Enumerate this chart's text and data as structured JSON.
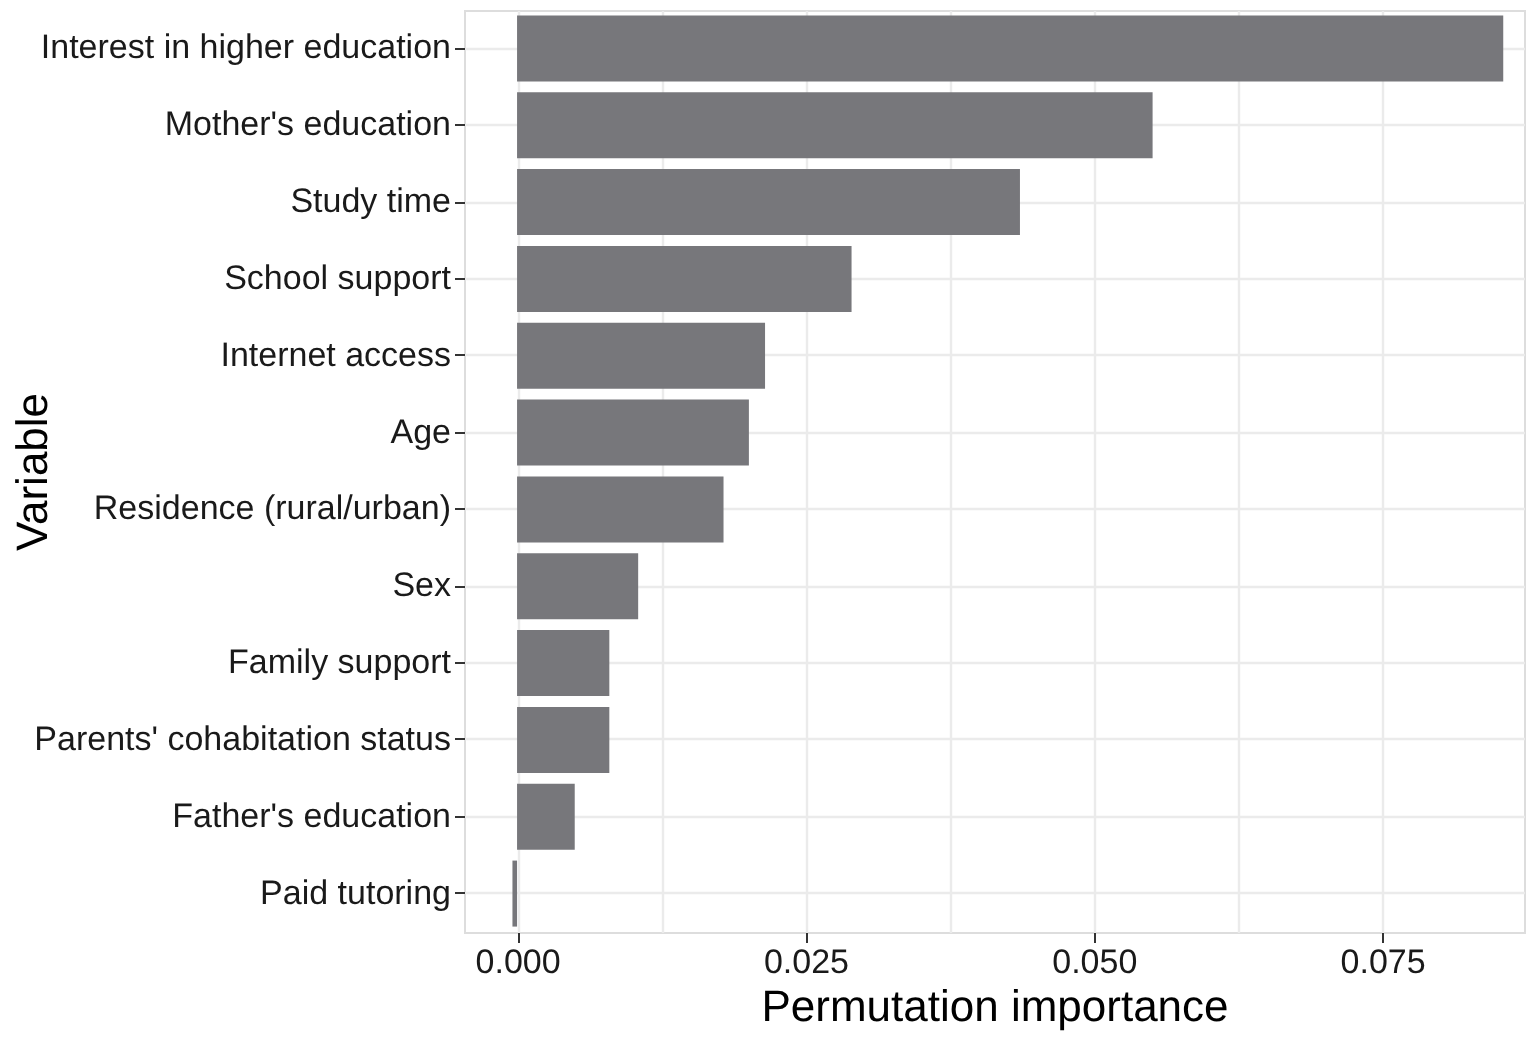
{
  "chart_data": {
    "type": "bar",
    "orientation": "horizontal",
    "xlabel": "Permutation importance",
    "ylabel": "Variable",
    "categories": [
      "Interest in higher education",
      "Mother's education",
      "Study time",
      "School support",
      "Internet access",
      "Age",
      "Residence (rural/urban)",
      "Sex",
      "Family support",
      "Parents' cohabitation status",
      "Father's education",
      "Paid tutoring"
    ],
    "values": [
      0.0855,
      0.0551,
      0.0436,
      0.029,
      0.0215,
      0.0201,
      0.0179,
      0.0105,
      0.008,
      0.008,
      0.005,
      -0.0004
    ],
    "color": "#77777b",
    "xlim": [
      -0.0046,
      0.0873
    ],
    "xticks": [
      {
        "value": 0.0,
        "label": "0.000"
      },
      {
        "value": 0.0125,
        "label": null
      },
      0.025,
      {
        "value": 0.0375,
        "label": null
      },
      {
        "value": 0.05,
        "label": "0.050"
      },
      {
        "value": 0.0625,
        "label": null
      },
      0.075
    ],
    "grid": true
  }
}
